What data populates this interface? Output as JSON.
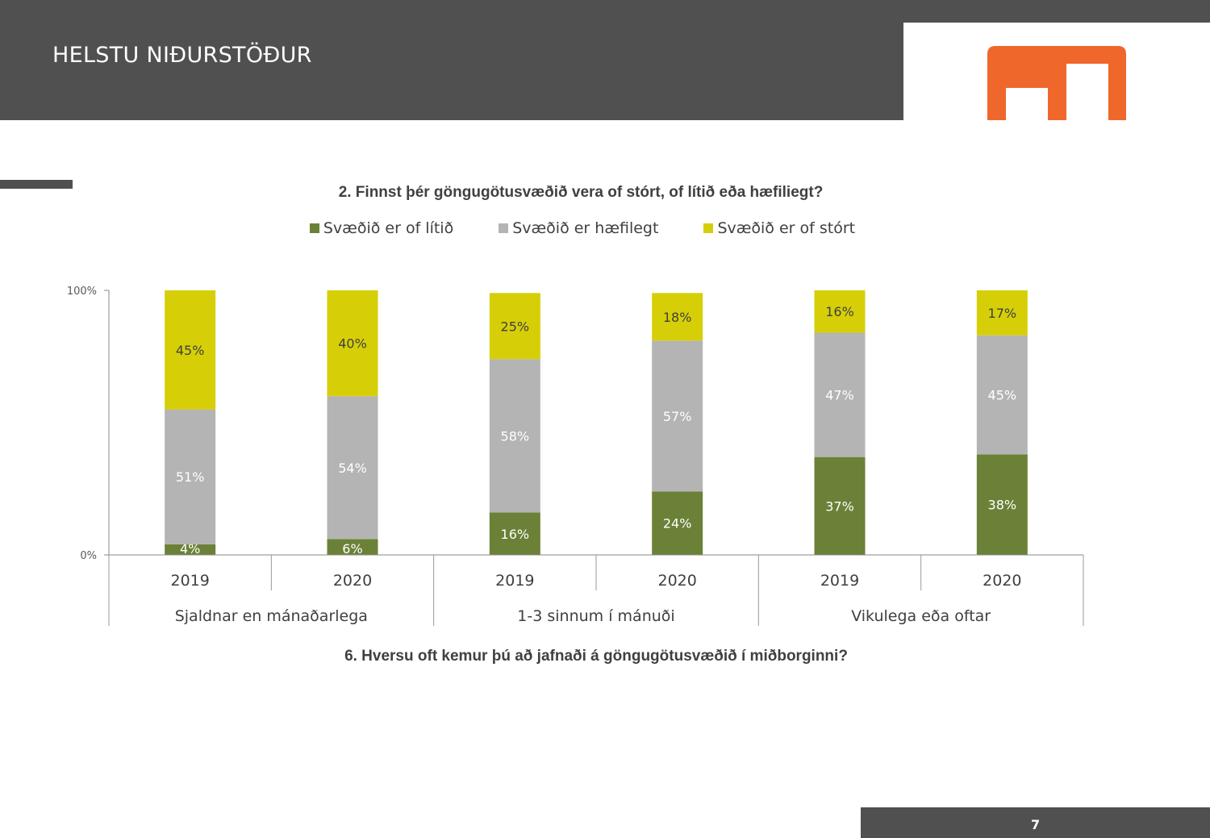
{
  "header": {
    "title": "HELSTU NIÐURSTÖÐUR"
  },
  "colors": {
    "header": "#505050",
    "logo": "#f0672b",
    "green": "#6b8137",
    "grey": "#b4b4b4",
    "yellow": "#d6cf07"
  },
  "footer": {
    "page_number": "7"
  },
  "chart_data": {
    "type": "bar",
    "stacked": true,
    "title": "2. Finnst þér göngugötusvæðið vera of stórt, of lítið eða hæfiliegt?",
    "xlabel": "6. Hversu oft kemur þú að jafnaði á göngugötusvæðið í miðborginni?",
    "ylabel": "",
    "ylim": [
      0,
      100
    ],
    "yticks": [
      "0%",
      "100%"
    ],
    "legend_position": "top",
    "groups": [
      "Sjaldnar en mánaðarlega",
      "1-3 sinnum í mánuði",
      "Vikulega eða oftar"
    ],
    "categories": [
      "2019",
      "2020",
      "2019",
      "2020",
      "2019",
      "2020"
    ],
    "series": [
      {
        "name": "Svæðið er of lítið",
        "color": "#6b8137",
        "label_color": "#ffffff",
        "values": [
          4,
          6,
          16,
          24,
          37,
          38
        ]
      },
      {
        "name": "Svæðið er hæfilegt",
        "color": "#b4b4b4",
        "label_color": "#ffffff",
        "values": [
          51,
          54,
          58,
          57,
          47,
          45
        ]
      },
      {
        "name": "Svæðið er of stórt",
        "color": "#d6cf07",
        "label_color": "#404040",
        "values": [
          45,
          40,
          25,
          18,
          16,
          17
        ]
      }
    ]
  }
}
